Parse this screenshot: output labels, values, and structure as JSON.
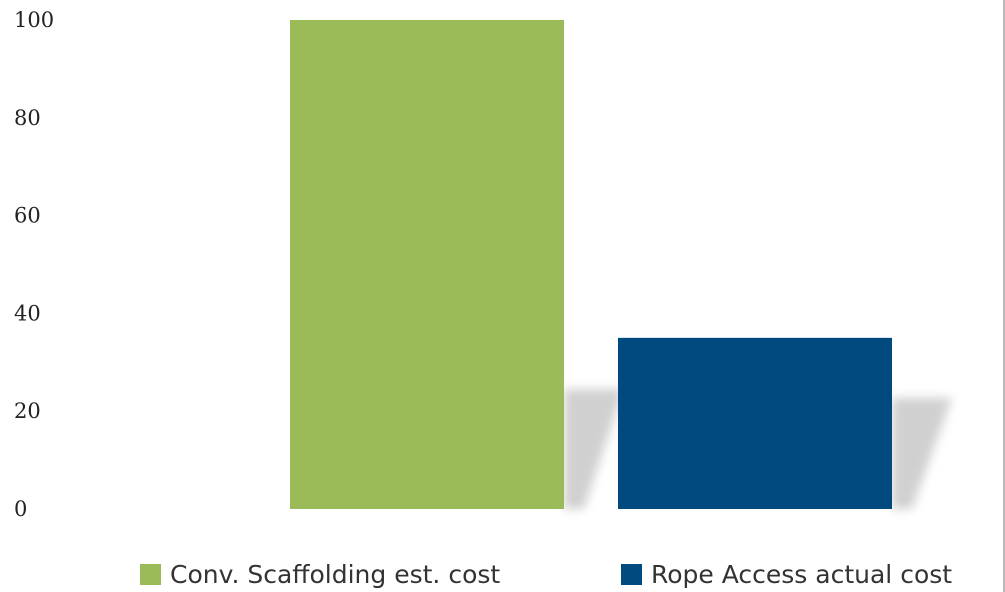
{
  "chart_data": {
    "type": "bar",
    "title": "",
    "xlabel": "",
    "ylabel": "",
    "ylim": [
      0,
      100
    ],
    "yticks": [
      "0",
      "20",
      "40",
      "60",
      "80",
      "100"
    ],
    "grid": false,
    "legend_position": "bottom",
    "series": [
      {
        "name": "Conv. Scaffolding est. cost",
        "value": 100,
        "color": "#9bbb59"
      },
      {
        "name": "Rope Access actual cost",
        "value": 35,
        "color": "#004a80"
      }
    ]
  }
}
